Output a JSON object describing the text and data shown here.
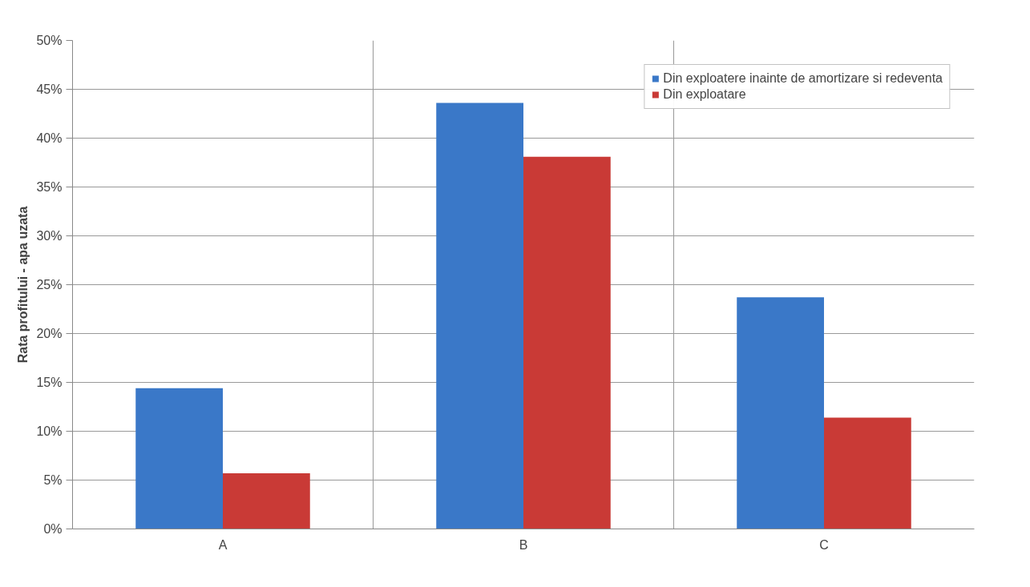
{
  "chart_data": {
    "type": "bar",
    "ylabel": "Rata profitului - apa uzata",
    "categories": [
      "A",
      "B",
      "C"
    ],
    "series": [
      {
        "name": "Din exploatere inainte de amortizare si redeventa",
        "color": "#3a78c8",
        "values": [
          14.4,
          43.6,
          23.7
        ]
      },
      {
        "name": "Din exploatare",
        "color": "#c93a36",
        "values": [
          5.7,
          38.1,
          11.4
        ]
      }
    ],
    "ylim": [
      0,
      50
    ],
    "yticks": [
      {
        "value": 0,
        "label": "0%"
      },
      {
        "value": 5,
        "label": "5%"
      },
      {
        "value": 10,
        "label": "10%"
      },
      {
        "value": 15,
        "label": "15%"
      },
      {
        "value": 20,
        "label": "20%"
      },
      {
        "value": 25,
        "label": "25%"
      },
      {
        "value": 30,
        "label": "30%"
      },
      {
        "value": 35,
        "label": "35%"
      },
      {
        "value": 40,
        "label": "40%"
      },
      {
        "value": 45,
        "label": "45%"
      },
      {
        "value": 50,
        "label": "50%"
      }
    ],
    "grid": true,
    "legend": "top right"
  }
}
